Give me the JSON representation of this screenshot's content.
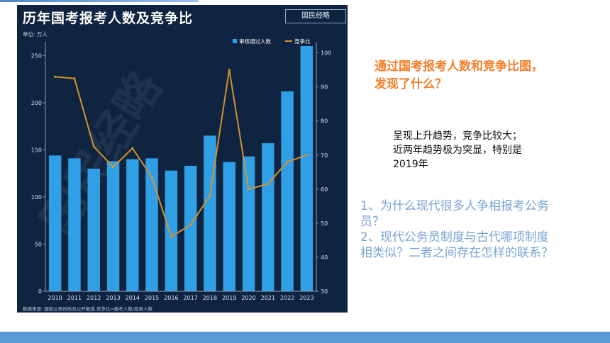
{
  "chart": {
    "title": "历年国考报考人数及竞争比",
    "brand": "国民经略",
    "watermark": "国民经略",
    "unit": "单位: 万人",
    "source": "数据来源: 国家公务员局及公开报道   竞争比=报考人数/招录人数"
  },
  "chart_data": {
    "type": "bar",
    "categories": [
      "2010",
      "2011",
      "2012",
      "2013",
      "2014",
      "2015",
      "2016",
      "2017",
      "2018",
      "2019",
      "2020",
      "2021",
      "2022",
      "2023"
    ],
    "series": [
      {
        "name": "审核通过人数",
        "type": "bar",
        "axis": "left",
        "color": "#2f9fe6",
        "values": [
          144,
          141,
          130,
          138,
          140,
          141,
          128,
          133,
          165,
          137,
          143,
          157,
          212,
          260
        ]
      },
      {
        "name": "竞争比",
        "type": "line",
        "axis": "right",
        "color": "#d4922e",
        "values": [
          93,
          92.5,
          72.5,
          66.5,
          72,
          63.5,
          46,
          49.5,
          58,
          95,
          60,
          61.5,
          68,
          70
        ]
      }
    ],
    "ylim_left": [
      0,
      260
    ],
    "yticks_left": [
      0,
      50,
      100,
      150,
      200,
      250
    ],
    "ylim_right": [
      30,
      102
    ],
    "yticks_right": [
      30,
      40,
      50,
      60,
      70,
      80,
      90,
      100
    ],
    "grid": false,
    "legend": "top-right"
  },
  "heading": {
    "line1": "通过国考报考人数和竞争比图，",
    "line2": "发现了什么？"
  },
  "observation": {
    "line1": "呈现上升趋势，竞争比较大；",
    "line2": "近两年趋势极为突显，特别是",
    "line3": "2019年"
  },
  "questions": {
    "q1_line1": "1、为什么现代很多人争相报考公务",
    "q1_line2": "员？",
    "q2_line1": "2、现代公务员制度与古代哪项制度",
    "q2_line2": "相类似？二者之间存在怎样的联系？"
  },
  "colors": {
    "panel": "#0f2440",
    "bar": "#2f9fe6",
    "line": "#d4922e",
    "heading": "#f47f2b",
    "question": "#7aa3d1",
    "band": "#5b9bd5"
  }
}
